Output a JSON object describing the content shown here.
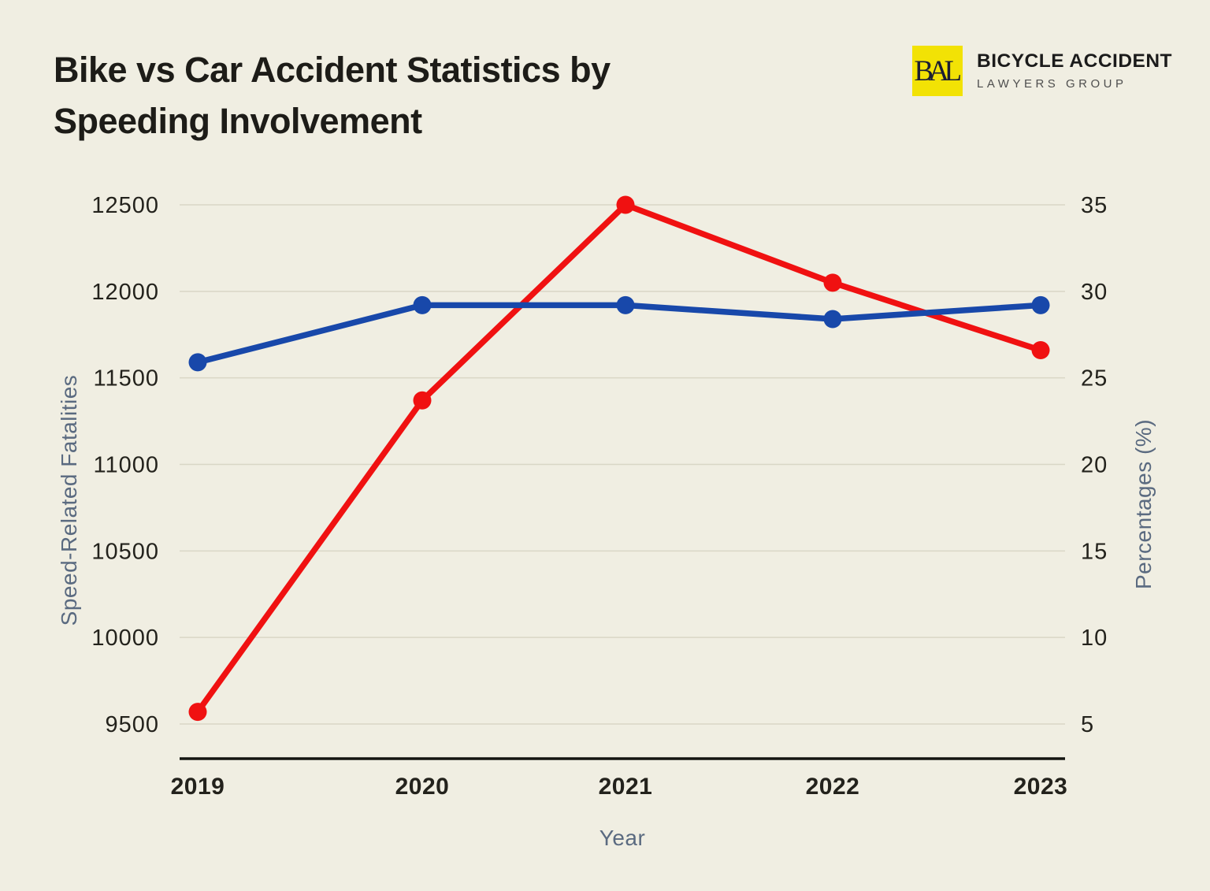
{
  "colors": {
    "background": "#f0eee2",
    "gridline": "#d9d6c6",
    "axis_line": "#141511",
    "tick_text": "#23221c",
    "axis_title_text": "#5a6a80",
    "title_text": "#1d1c18",
    "logo_yellow": "#f2e205",
    "logo_monogram": "#1a1d33",
    "logo_name": "#1b1b1b",
    "logo_subname": "#4e4e4e"
  },
  "header": {
    "title_lines": [
      "Bike vs Car Accident Statistics by",
      "Speeding Involvement"
    ],
    "logo": {
      "monogram": "BAL",
      "name": "BICYCLE ACCIDENT",
      "subname": "LAWYERS GROUP"
    }
  },
  "chart_data": {
    "type": "line",
    "x": [
      "2019",
      "2020",
      "2021",
      "2022",
      "2023"
    ],
    "xlabel": "Year",
    "ylabel_left": "Speed-Related Fatalities",
    "ylabel_right": "Percentages (%)",
    "left_axis": {
      "min": 9500,
      "max": 12500,
      "ticks": [
        12500,
        12000,
        11500,
        11000,
        10500,
        10000,
        9500
      ]
    },
    "right_axis": {
      "min": 5,
      "max": 35,
      "ticks": [
        35,
        30,
        25,
        20,
        15,
        10,
        5
      ]
    },
    "grid": "horizontal gridlines only",
    "legend": "none",
    "series": [
      {
        "id": "speed-related-fatalities",
        "name": "Speed-Related Fatalities (blue, left axis)",
        "axis": "left",
        "color": "#1848aa",
        "values": [
          11590,
          11920,
          11920,
          11840,
          11920
        ]
      },
      {
        "id": "percentages",
        "name": "Percentages (red, right axis)",
        "axis": "right",
        "color": "#f01111",
        "values": [
          5.7,
          23.7,
          35,
          30.5,
          26.6
        ]
      }
    ]
  }
}
